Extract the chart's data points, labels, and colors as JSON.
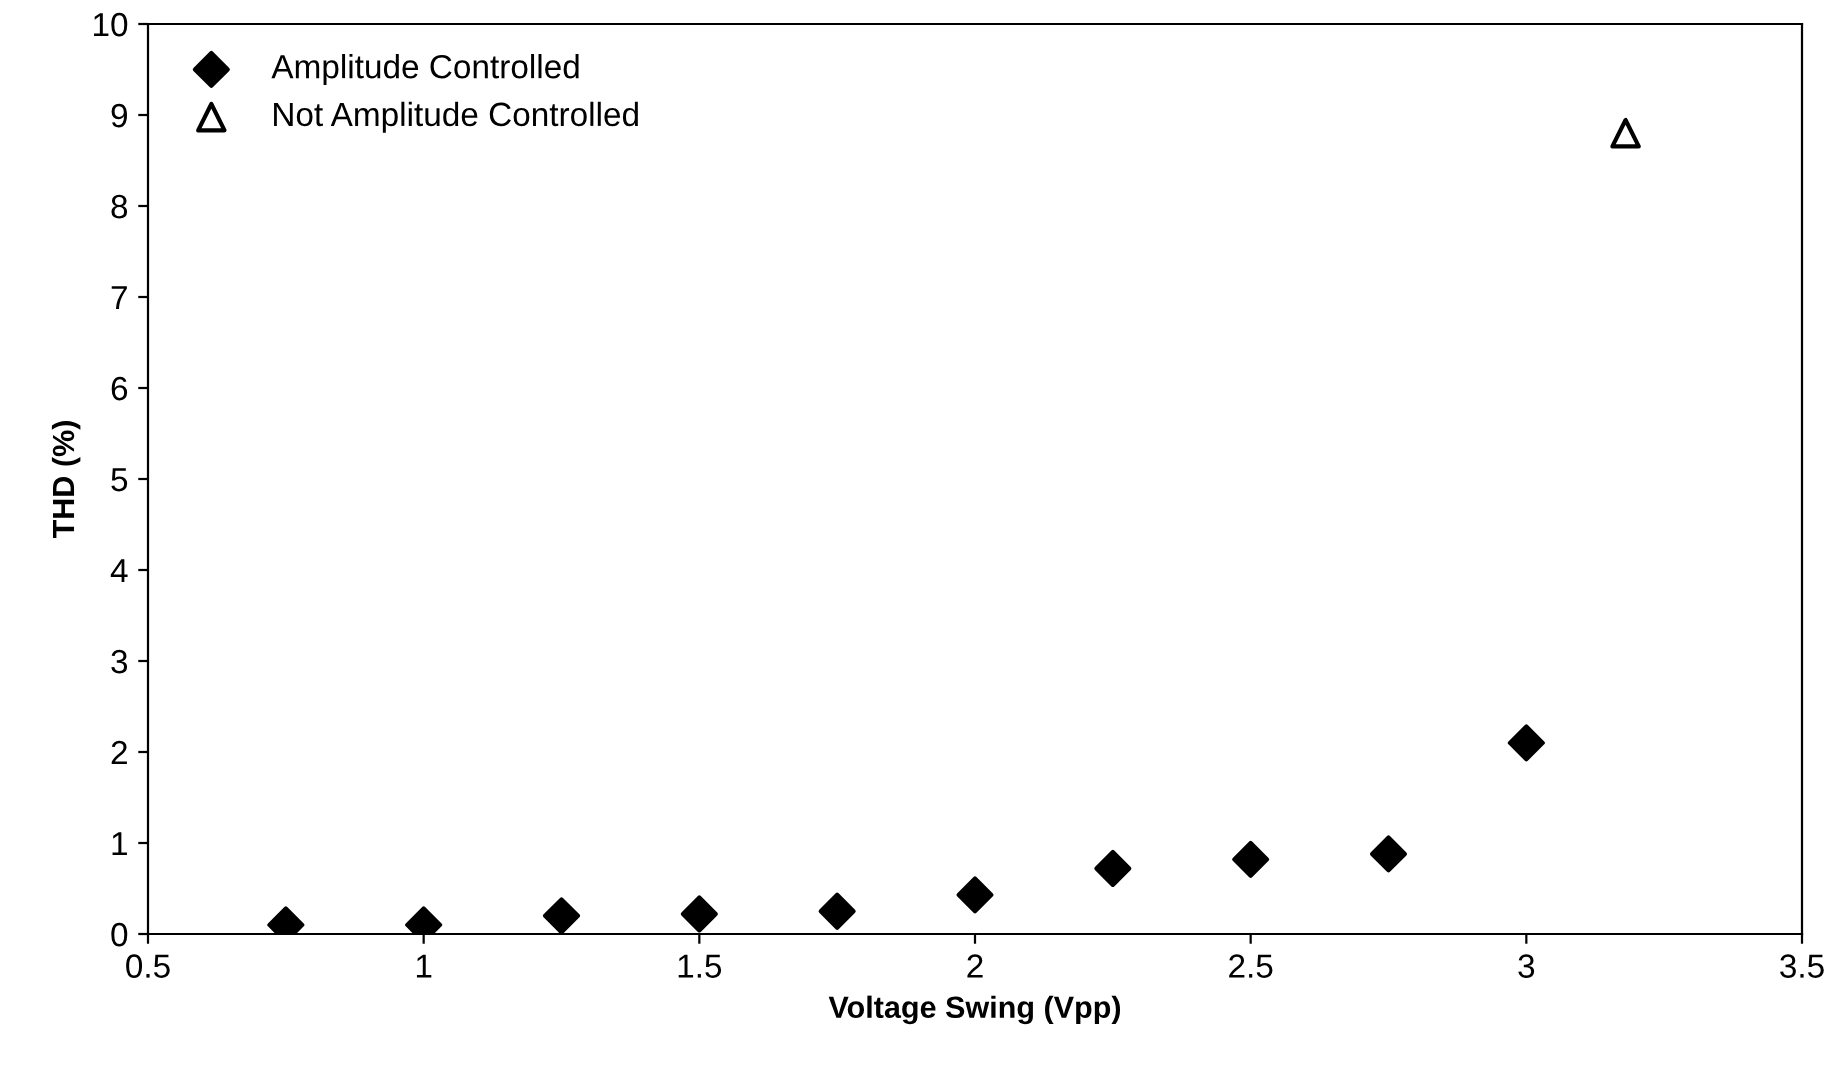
{
  "chart_data": {
    "type": "scatter",
    "xlabel": "Voltage Swing (Vpp)",
    "ylabel": "THD (%)",
    "xlim": [
      0.5,
      3.5
    ],
    "xticks": [
      0.5,
      1,
      1.5,
      2,
      2.5,
      3,
      3.5
    ],
    "ylim": [
      0,
      10
    ],
    "yticks": [
      0,
      1,
      2,
      3,
      4,
      5,
      6,
      7,
      8,
      9,
      10
    ],
    "grid": false,
    "legend": "top left",
    "series": [
      {
        "name": "Amplitude Controlled",
        "color": "#000000",
        "marker": "diamond",
        "x": [
          0.75,
          1,
          1.25,
          1.5,
          1.75,
          2,
          2.25,
          2.5,
          2.75,
          3
        ],
        "values": [
          0.1,
          0.1,
          0.2,
          0.22,
          0.25,
          0.43,
          0.72,
          0.82,
          0.88,
          2.1
        ]
      },
      {
        "name": "Not Amplitude Controlled",
        "color": "#000000",
        "marker": "triangle",
        "x": [
          3.18
        ],
        "values": [
          8.8
        ]
      }
    ]
  }
}
